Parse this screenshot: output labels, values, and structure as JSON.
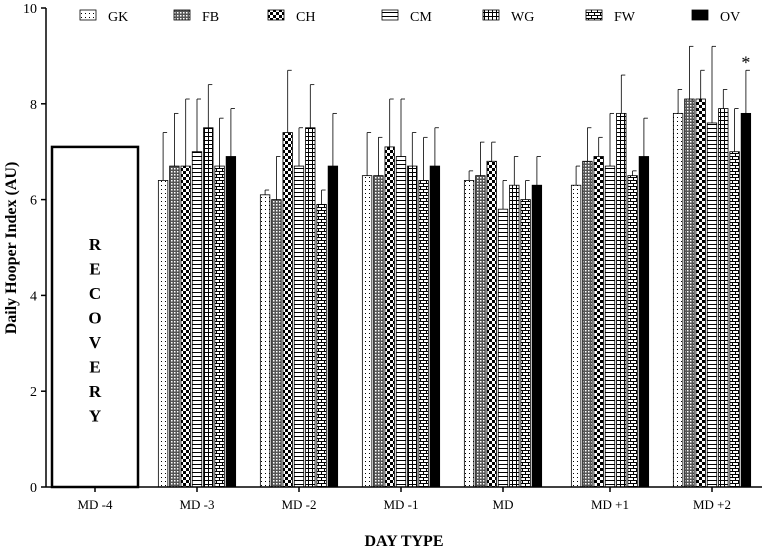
{
  "chart_data": {
    "type": "bar",
    "title": "",
    "xlabel": "DAY TYPE",
    "ylabel": "Daily Hooper Index (AU)",
    "ylim": [
      0,
      10
    ],
    "yticks": [
      0,
      2,
      4,
      6,
      8,
      10
    ],
    "categories": [
      "MD -4",
      "MD -3",
      "MD -2",
      "MD -1",
      "MD",
      "MD +1",
      "MD +2"
    ],
    "legend_position": "top",
    "series": [
      {
        "name": "GK",
        "pattern": "dots",
        "values": [
          null,
          6.4,
          6.1,
          6.5,
          6.4,
          6.3,
          7.8
        ],
        "errors": [
          null,
          1.0,
          0.1,
          0.9,
          0.2,
          0.4,
          0.5
        ]
      },
      {
        "name": "FB",
        "pattern": "dense",
        "values": [
          null,
          6.7,
          6.0,
          6.5,
          6.5,
          6.8,
          8.1
        ],
        "errors": [
          null,
          1.1,
          0.9,
          0.8,
          0.7,
          0.7,
          1.1
        ]
      },
      {
        "name": "CH",
        "pattern": "checker",
        "values": [
          null,
          6.7,
          7.4,
          7.1,
          6.8,
          6.9,
          8.1
        ],
        "errors": [
          null,
          1.4,
          1.3,
          1.0,
          0.4,
          0.4,
          0.6
        ]
      },
      {
        "name": "CM",
        "pattern": "hlines",
        "values": [
          null,
          7.0,
          6.7,
          6.9,
          5.8,
          6.7,
          7.6
        ],
        "errors": [
          null,
          1.1,
          0.8,
          1.2,
          0.6,
          1.1,
          1.6
        ]
      },
      {
        "name": "WG",
        "pattern": "grid",
        "values": [
          null,
          7.5,
          7.5,
          6.7,
          6.3,
          7.8,
          7.9
        ],
        "errors": [
          null,
          0.9,
          0.9,
          0.7,
          0.6,
          0.8,
          0.4
        ]
      },
      {
        "name": "FW",
        "pattern": "brick",
        "values": [
          null,
          6.7,
          5.9,
          6.4,
          6.0,
          6.5,
          7.0
        ],
        "errors": [
          null,
          1.0,
          0.3,
          0.9,
          0.4,
          0.1,
          0.9
        ]
      },
      {
        "name": "OV",
        "pattern": "solid",
        "values": [
          null,
          6.9,
          6.7,
          6.7,
          6.3,
          6.9,
          7.8
        ],
        "errors": [
          null,
          1.0,
          1.1,
          0.8,
          0.6,
          0.8,
          0.9
        ]
      }
    ],
    "recovery": {
      "category": "MD -4",
      "value": 7.1,
      "label": "RECOVERY"
    },
    "annotations": [
      {
        "text": "*",
        "category": "MD +2",
        "series": "OV"
      }
    ]
  }
}
